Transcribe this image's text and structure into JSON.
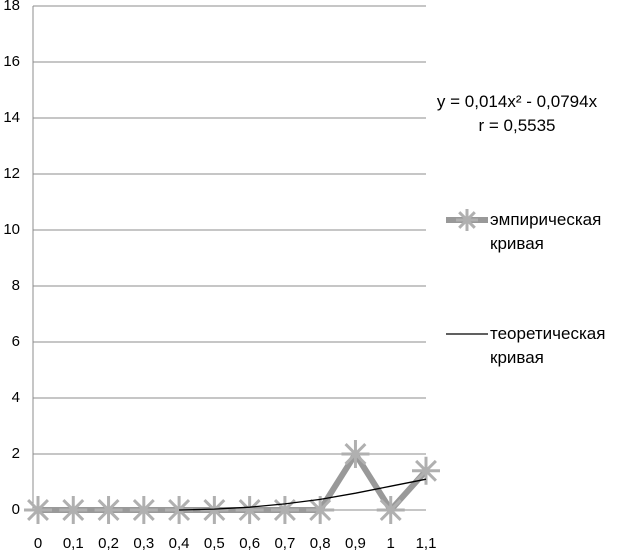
{
  "chart_data": {
    "type": "line",
    "categories": [
      "0",
      "0,1",
      "0,2",
      "0,3",
      "0,4",
      "0,5",
      "0,6",
      "0,7",
      "0,8",
      "0,9",
      "1",
      "1,1"
    ],
    "series": [
      {
        "name": "эмпирическая кривая",
        "color": "#999999",
        "values": [
          0,
          0,
          0,
          0,
          0,
          0,
          0,
          0,
          0,
          2,
          0,
          1.4
        ]
      },
      {
        "name": "теоретическая кривая",
        "color": "#000000",
        "values": [
          null,
          null,
          null,
          null,
          0,
          0.03,
          0.1,
          0.22,
          0.38,
          0.6,
          0.85,
          1.1
        ]
      }
    ],
    "ylim": [
      0,
      18
    ],
    "yticks": [
      0,
      2,
      4,
      6,
      8,
      10,
      12,
      14,
      16,
      18
    ],
    "grid": true,
    "legend": "right",
    "annotations": [
      "y = 0,014x² - 0,0794x",
      "r = 0,5535"
    ]
  }
}
